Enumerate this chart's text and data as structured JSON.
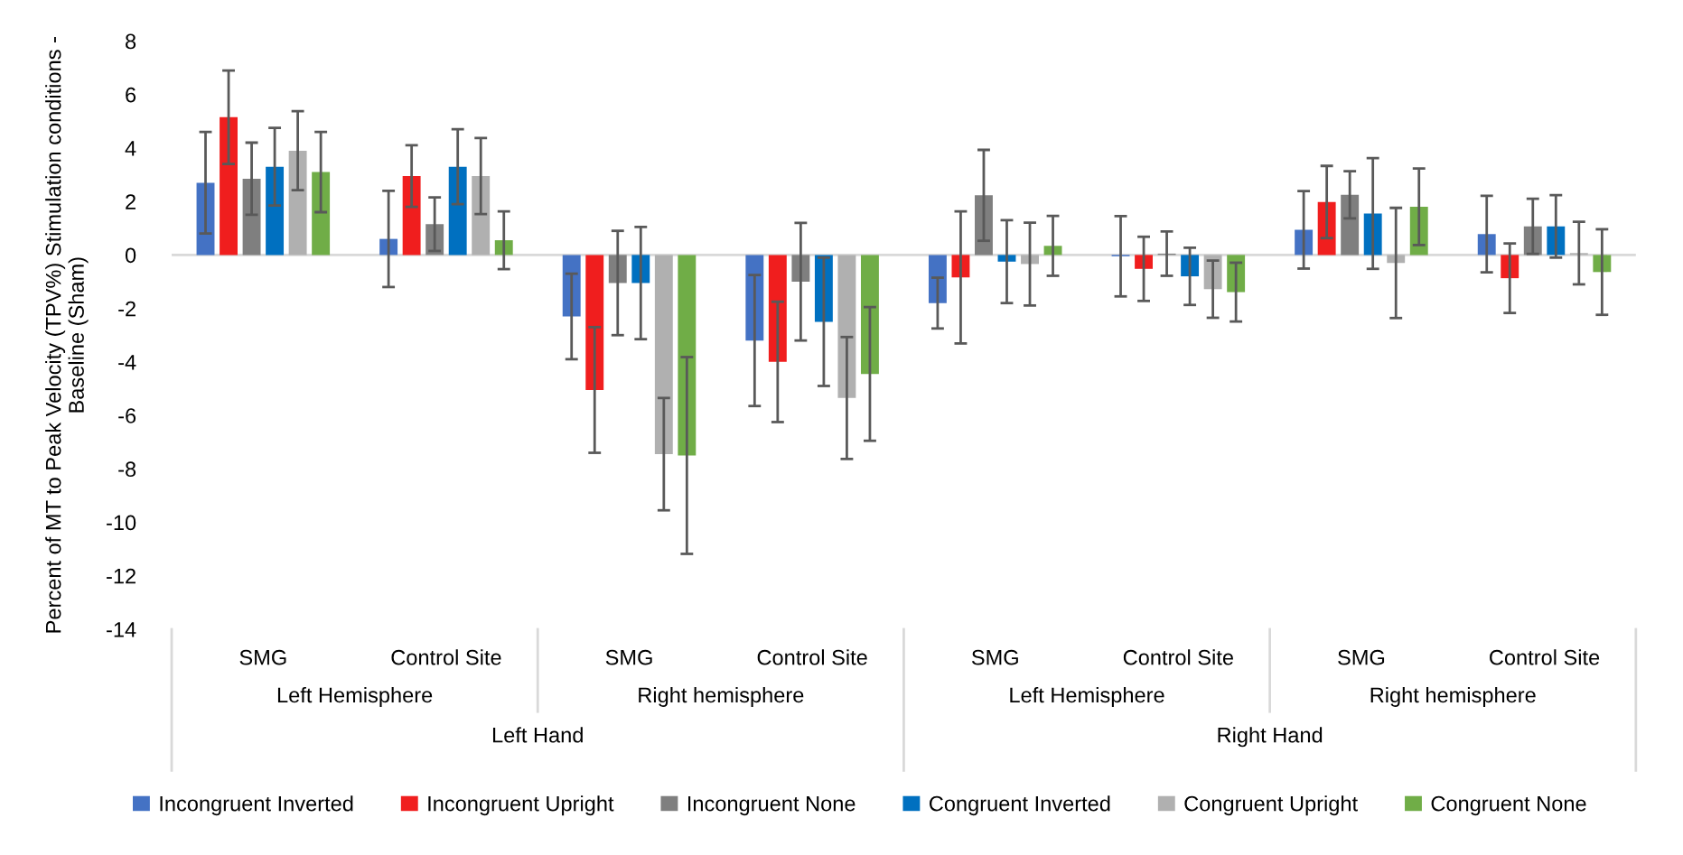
{
  "chart_data": {
    "type": "bar",
    "ylabel": "Percent of MT to Peak Velocity (TPV%) Stimulation conditions -\nBaseline (Sham)",
    "categories": [
      "SMG",
      "Control Site",
      "SMG",
      "Control Site",
      "SMG",
      "Control Site",
      "SMG",
      "Control Site"
    ],
    "annotations": [
      "Left Hemisphere",
      "Right hemisphere",
      "Left Hemisphere",
      "Right hemisphere",
      "Left Hand",
      "Right Hand"
    ],
    "series": [
      {
        "name": "Incongruent Inverted",
        "color": "#4472c4",
        "values": [
          2.7,
          0.6,
          -2.3,
          -3.2,
          -1.8,
          -0.05,
          0.94,
          0.78
        ],
        "errors": [
          1.9,
          1.8,
          1.6,
          2.45,
          0.95,
          1.5,
          1.45,
          1.43
        ]
      },
      {
        "name": "Incongruent Upright",
        "color": "#f01e1e",
        "values": [
          5.15,
          2.95,
          -5.05,
          -4.0,
          -0.84,
          -0.52,
          1.98,
          -0.87
        ],
        "errors": [
          1.75,
          1.15,
          2.35,
          2.25,
          2.47,
          1.2,
          1.35,
          1.3
        ]
      },
      {
        "name": "Incongruent None",
        "color": "#7f7f7f",
        "values": [
          2.85,
          1.15,
          -1.05,
          -1.0,
          2.23,
          0.05,
          2.25,
          1.07
        ],
        "errors": [
          1.35,
          1.0,
          1.95,
          2.2,
          1.7,
          0.83,
          0.88,
          1.03
        ]
      },
      {
        "name": "Congruent Inverted",
        "color": "#0070c0",
        "values": [
          3.3,
          3.3,
          -1.05,
          -2.5,
          -0.25,
          -0.8,
          1.55,
          1.07
        ],
        "errors": [
          1.45,
          1.4,
          2.1,
          2.4,
          1.55,
          1.07,
          2.07,
          1.17
        ]
      },
      {
        "name": "Congruent Upright",
        "color": "#b0b0b0",
        "values": [
          3.9,
          2.95,
          -7.45,
          -5.35,
          -0.34,
          -1.28,
          -0.3,
          0.07
        ],
        "errors": [
          1.48,
          1.42,
          2.1,
          2.28,
          1.55,
          1.07,
          2.06,
          1.17
        ]
      },
      {
        "name": "Congruent None",
        "color": "#70ad47",
        "values": [
          3.1,
          0.55,
          -7.5,
          -4.45,
          0.34,
          -1.39,
          1.8,
          -0.64
        ],
        "errors": [
          1.5,
          1.08,
          3.68,
          2.5,
          1.12,
          1.1,
          1.43,
          1.6
        ]
      }
    ],
    "ylim": [
      -14,
      8
    ],
    "yticks": [
      -14,
      -12,
      -10,
      -8,
      -6,
      -4,
      -2,
      0,
      2,
      4,
      6,
      8
    ],
    "ref_lines": [
      {
        "axis": "y",
        "value": 0,
        "color": "#d9d9d9"
      }
    ],
    "grid": false,
    "legend": "bottom"
  }
}
